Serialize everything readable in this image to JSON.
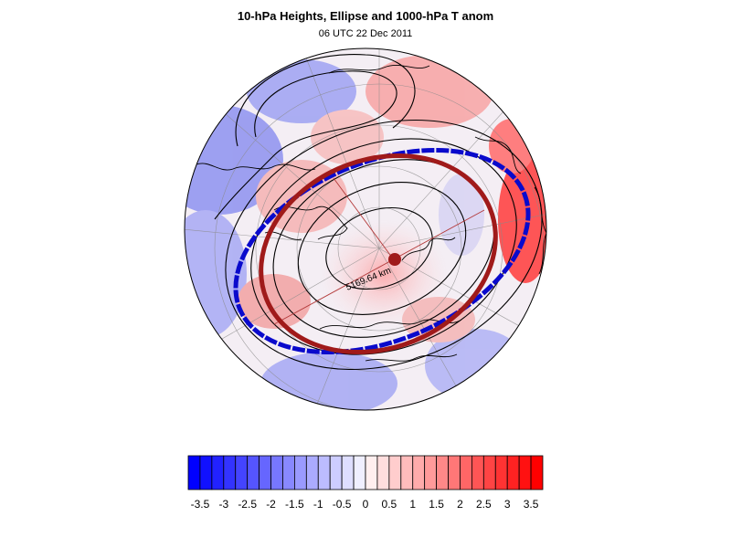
{
  "figure": {
    "title": "10-hPa Heights, Ellipse and 1000-hPa T anom",
    "subtitle": "06 UTC 22 Dec 2011",
    "distance_label": "5169.64 km"
  },
  "colors": {
    "ellipse_fit": "#a01a1a",
    "ellipse_obs": "#0a0acc",
    "center_marker": "#a01a1a",
    "contour": "#000000",
    "cold": "#0000ff",
    "warm": "#ff0000"
  },
  "colorbar": {
    "type": "color-scale",
    "min": -3.75,
    "max": 3.75,
    "interval": 0.25,
    "tick_labels": [
      "-3.5",
      "-3",
      "-2.5",
      "-2",
      "-1.5",
      "-1",
      "-0.5",
      "0",
      "0.5",
      "1",
      "1.5",
      "2",
      "2.5",
      "3",
      "3.5"
    ],
    "tick_values": [
      -3.5,
      -3,
      -2.5,
      -2,
      -1.5,
      -1,
      -0.5,
      0,
      0.5,
      1,
      1.5,
      2,
      2.5,
      3,
      3.5
    ]
  }
}
